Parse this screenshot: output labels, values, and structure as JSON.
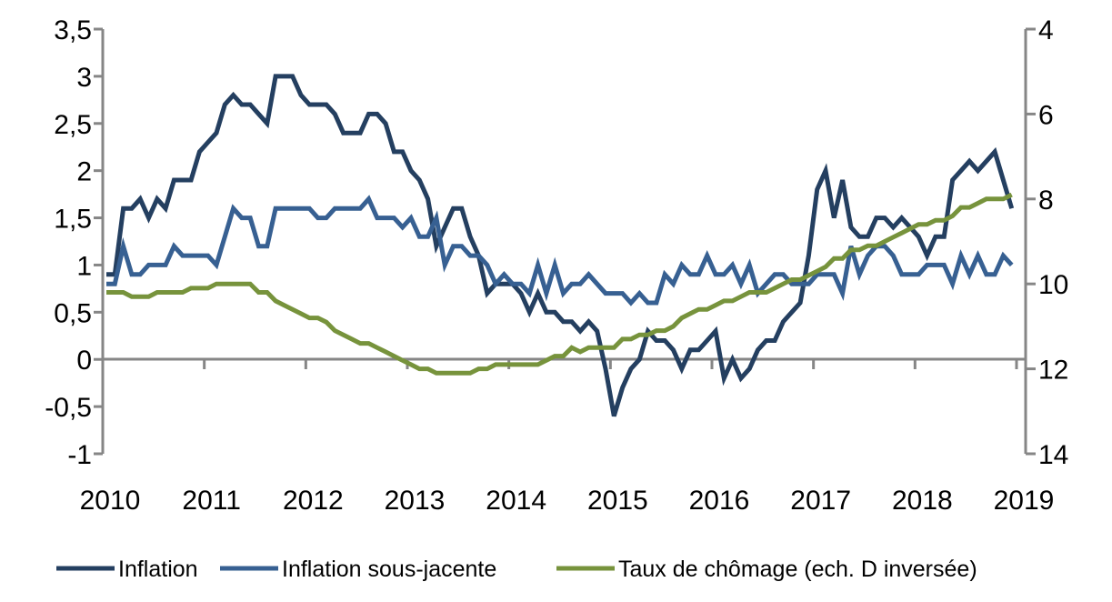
{
  "chart_data": {
    "type": "line",
    "title": "",
    "x_start": "2010-01",
    "frequency": "monthly",
    "x_tick_labels": [
      "2010",
      "2011",
      "2012",
      "2013",
      "2014",
      "2015",
      "2016",
      "2017",
      "2018",
      "2019"
    ],
    "y_left": {
      "ylim": [
        -1,
        3.5
      ],
      "tick_labels": [
        "3,5",
        "3",
        "2,5",
        "2",
        "1,5",
        "1",
        "0,5",
        "0",
        "-0,5",
        "-1"
      ],
      "ticks": [
        3.5,
        3,
        2.5,
        2,
        1.5,
        1,
        0.5,
        0,
        -0.5,
        -1
      ]
    },
    "y_right": {
      "ylim": [
        4,
        14
      ],
      "inverted": true,
      "tick_labels": [
        "4",
        "6",
        "8",
        "10",
        "12",
        "14"
      ],
      "ticks": [
        4,
        6,
        8,
        10,
        12,
        14
      ]
    },
    "legend_position": "bottom",
    "series": [
      {
        "name": "Inflation",
        "axis": "left",
        "color": "#243F60",
        "values": [
          0.9,
          0.9,
          1.6,
          1.6,
          1.7,
          1.5,
          1.7,
          1.6,
          1.9,
          1.9,
          1.9,
          2.2,
          2.3,
          2.4,
          2.7,
          2.8,
          2.7,
          2.7,
          2.6,
          2.5,
          3.0,
          3.0,
          3.0,
          2.8,
          2.7,
          2.7,
          2.7,
          2.6,
          2.4,
          2.4,
          2.4,
          2.6,
          2.6,
          2.5,
          2.2,
          2.2,
          2.0,
          1.9,
          1.7,
          1.2,
          1.4,
          1.6,
          1.6,
          1.3,
          1.1,
          0.7,
          0.8,
          0.8,
          0.8,
          0.7,
          0.5,
          0.7,
          0.5,
          0.5,
          0.4,
          0.4,
          0.3,
          0.4,
          0.3,
          -0.1,
          -0.6,
          -0.3,
          -0.1,
          0.0,
          0.3,
          0.2,
          0.2,
          0.1,
          -0.1,
          0.1,
          0.1,
          0.2,
          0.3,
          -0.2,
          0.0,
          -0.2,
          -0.1,
          0.1,
          0.2,
          0.2,
          0.4,
          0.5,
          0.6,
          1.1,
          1.8,
          2.0,
          1.5,
          1.9,
          1.4,
          1.3,
          1.3,
          1.5,
          1.5,
          1.4,
          1.5,
          1.4,
          1.3,
          1.1,
          1.3,
          1.3,
          1.9,
          2.0,
          2.1,
          2.0,
          2.1,
          2.2,
          1.9,
          1.6
        ]
      },
      {
        "name": "Inflation sous-jacente",
        "axis": "left",
        "color": "#376092",
        "values": [
          0.8,
          0.8,
          1.2,
          0.9,
          0.9,
          1.0,
          1.0,
          1.0,
          1.2,
          1.1,
          1.1,
          1.1,
          1.1,
          1.0,
          1.3,
          1.6,
          1.5,
          1.5,
          1.2,
          1.2,
          1.6,
          1.6,
          1.6,
          1.6,
          1.6,
          1.5,
          1.5,
          1.6,
          1.6,
          1.6,
          1.6,
          1.7,
          1.5,
          1.5,
          1.5,
          1.4,
          1.5,
          1.3,
          1.3,
          1.5,
          1.0,
          1.2,
          1.2,
          1.1,
          1.1,
          1.0,
          0.8,
          0.9,
          0.8,
          0.8,
          0.7,
          1.0,
          0.7,
          1.0,
          0.7,
          0.8,
          0.8,
          0.9,
          0.8,
          0.7,
          0.7,
          0.7,
          0.6,
          0.7,
          0.6,
          0.6,
          0.9,
          0.8,
          1.0,
          0.9,
          0.9,
          1.1,
          0.9,
          0.9,
          1.0,
          0.8,
          1.0,
          0.7,
          0.8,
          0.9,
          0.9,
          0.8,
          0.8,
          0.8,
          0.9,
          0.9,
          0.9,
          0.7,
          1.2,
          0.9,
          1.1,
          1.2,
          1.2,
          1.1,
          0.9,
          0.9,
          0.9,
          1.0,
          1.0,
          1.0,
          0.8,
          1.1,
          0.9,
          1.1,
          0.9,
          0.9,
          1.1,
          1.0
        ]
      },
      {
        "name": "Taux de chômage (ech. D inversée)",
        "axis": "right",
        "color": "#77933C",
        "values": [
          10.2,
          10.2,
          10.2,
          10.3,
          10.3,
          10.3,
          10.2,
          10.2,
          10.2,
          10.2,
          10.1,
          10.1,
          10.1,
          10.0,
          10.0,
          10.0,
          10.0,
          10.0,
          10.2,
          10.2,
          10.4,
          10.5,
          10.6,
          10.7,
          10.8,
          10.8,
          10.9,
          11.1,
          11.2,
          11.3,
          11.4,
          11.4,
          11.5,
          11.6,
          11.7,
          11.8,
          11.9,
          12.0,
          12.0,
          12.1,
          12.1,
          12.1,
          12.1,
          12.1,
          12.0,
          12.0,
          11.9,
          11.9,
          11.9,
          11.9,
          11.9,
          11.9,
          11.8,
          11.7,
          11.7,
          11.5,
          11.6,
          11.5,
          11.5,
          11.5,
          11.5,
          11.3,
          11.3,
          11.2,
          11.2,
          11.1,
          11.1,
          11.0,
          10.8,
          10.7,
          10.6,
          10.6,
          10.5,
          10.4,
          10.4,
          10.3,
          10.2,
          10.2,
          10.2,
          10.1,
          10.0,
          9.9,
          9.9,
          9.8,
          9.7,
          9.6,
          9.4,
          9.4,
          9.2,
          9.2,
          9.1,
          9.1,
          9.0,
          8.9,
          8.8,
          8.7,
          8.6,
          8.6,
          8.5,
          8.5,
          8.4,
          8.2,
          8.2,
          8.1,
          8.0,
          8.0,
          8.0,
          7.9
        ]
      }
    ]
  }
}
